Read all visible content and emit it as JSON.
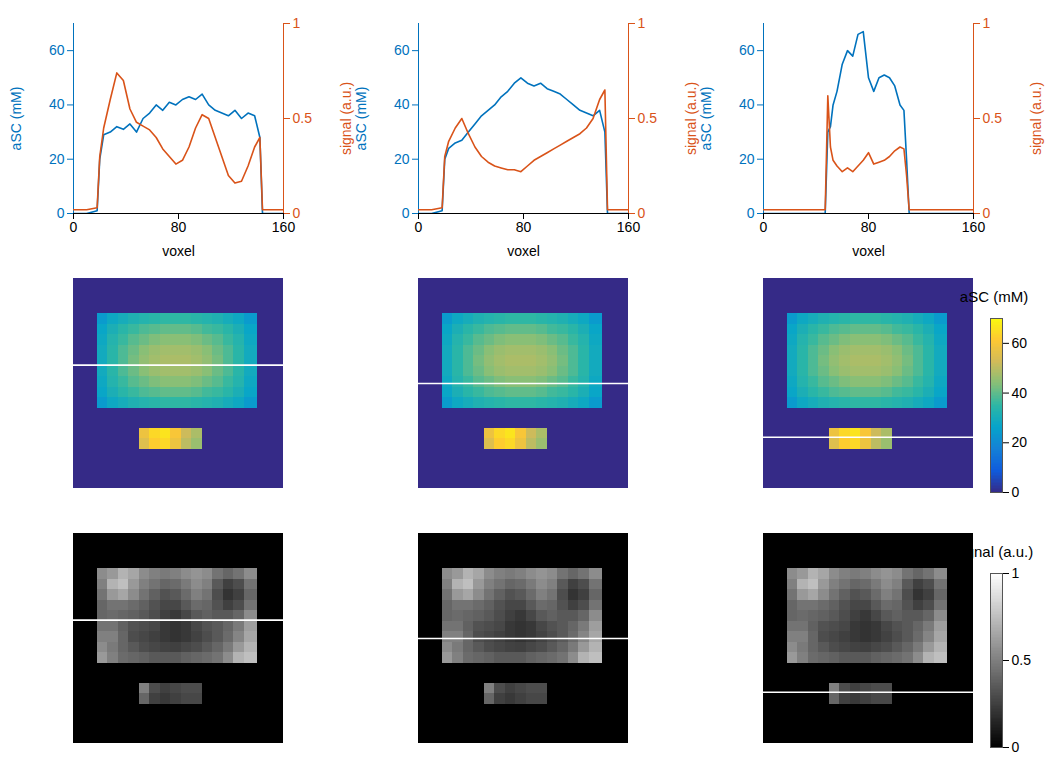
{
  "chart_data": [
    {
      "type": "line",
      "xlabel": "voxel",
      "ylabel": "aSC (mM)",
      "y2label": "signal (a.u.)",
      "xlim": [
        0,
        160
      ],
      "xticks": [
        0,
        80,
        160
      ],
      "ylim": [
        0,
        70
      ],
      "yticks": [
        0,
        20,
        40,
        60
      ],
      "y2lim": [
        0,
        1
      ],
      "y2ticks": [
        0,
        0.5,
        1
      ],
      "x": [
        0,
        10,
        18,
        20,
        23,
        28,
        33,
        38,
        43,
        48,
        53,
        58,
        63,
        68,
        73,
        78,
        83,
        88,
        93,
        98,
        103,
        108,
        113,
        118,
        123,
        128,
        133,
        138,
        142,
        144,
        150,
        160
      ],
      "series": [
        {
          "color": "#0072bd",
          "axis": "y",
          "values": [
            0,
            0,
            1,
            20,
            29,
            30,
            32,
            31,
            33,
            30,
            35,
            37,
            40,
            38,
            41,
            40,
            42,
            43,
            42,
            44,
            40,
            38,
            37,
            36,
            38,
            35,
            37,
            36,
            28,
            0,
            0,
            0
          ]
        },
        {
          "color": "#d95319",
          "axis": "y2",
          "values": [
            0.02,
            0.02,
            0.03,
            0.3,
            0.45,
            0.6,
            0.74,
            0.7,
            0.55,
            0.48,
            0.46,
            0.44,
            0.4,
            0.34,
            0.3,
            0.26,
            0.28,
            0.35,
            0.45,
            0.52,
            0.5,
            0.4,
            0.3,
            0.2,
            0.16,
            0.17,
            0.25,
            0.35,
            0.4,
            0.02,
            0.02,
            0.02
          ]
        }
      ]
    },
    {
      "type": "line",
      "xlabel": "voxel",
      "ylabel": "aSC (mM)",
      "y2label": "signal (a.u.)",
      "xlim": [
        0,
        160
      ],
      "xticks": [
        0,
        80,
        160
      ],
      "ylim": [
        0,
        70
      ],
      "yticks": [
        0,
        20,
        40,
        60
      ],
      "y2lim": [
        0,
        1
      ],
      "y2ticks": [
        0,
        0.5,
        1
      ],
      "x": [
        0,
        10,
        18,
        20,
        23,
        28,
        33,
        38,
        43,
        48,
        53,
        58,
        63,
        68,
        73,
        78,
        83,
        88,
        93,
        98,
        103,
        108,
        113,
        118,
        123,
        128,
        133,
        138,
        142,
        144,
        150,
        160
      ],
      "series": [
        {
          "color": "#0072bd",
          "axis": "y",
          "values": [
            0,
            0,
            1,
            20,
            24,
            26,
            27,
            30,
            33,
            36,
            38,
            40,
            43,
            45,
            48,
            50,
            48,
            47,
            48,
            46,
            45,
            44,
            42,
            40,
            38,
            37,
            36,
            38,
            30,
            0,
            0,
            0
          ]
        },
        {
          "color": "#d95319",
          "axis": "y2",
          "values": [
            0.02,
            0.02,
            0.03,
            0.3,
            0.38,
            0.45,
            0.5,
            0.42,
            0.35,
            0.3,
            0.27,
            0.25,
            0.24,
            0.23,
            0.23,
            0.22,
            0.25,
            0.28,
            0.3,
            0.32,
            0.34,
            0.36,
            0.38,
            0.4,
            0.42,
            0.45,
            0.5,
            0.6,
            0.65,
            0.02,
            0.02,
            0.02
          ]
        }
      ]
    },
    {
      "type": "line",
      "xlabel": "voxel",
      "ylabel": "aSC (mM)",
      "y2label": "signal (a.u.)",
      "xlim": [
        0,
        160
      ],
      "xticks": [
        0,
        80,
        160
      ],
      "ylim": [
        0,
        70
      ],
      "yticks": [
        0,
        20,
        40,
        60
      ],
      "y2lim": [
        0,
        1
      ],
      "y2ticks": [
        0,
        0.5,
        1
      ],
      "x": [
        0,
        10,
        20,
        30,
        40,
        47,
        49,
        51,
        53,
        56,
        60,
        64,
        68,
        72,
        76,
        80,
        84,
        88,
        92,
        96,
        100,
        104,
        107,
        109,
        111,
        120,
        130,
        140,
        150,
        160
      ],
      "series": [
        {
          "color": "#0072bd",
          "axis": "y",
          "values": [
            0,
            0,
            0,
            0,
            0,
            0,
            30,
            32,
            40,
            45,
            55,
            60,
            58,
            66,
            67,
            50,
            45,
            50,
            51,
            50,
            47,
            40,
            38,
            20,
            0,
            0,
            0,
            0,
            0,
            0
          ]
        },
        {
          "color": "#d95319",
          "axis": "y2",
          "values": [
            0.02,
            0.02,
            0.02,
            0.02,
            0.02,
            0.02,
            0.62,
            0.35,
            0.28,
            0.25,
            0.22,
            0.24,
            0.22,
            0.25,
            0.28,
            0.32,
            0.26,
            0.27,
            0.28,
            0.3,
            0.33,
            0.35,
            0.34,
            0.2,
            0.02,
            0.02,
            0.02,
            0.02,
            0.02,
            0.02
          ]
        }
      ]
    },
    {
      "type": "heatmap",
      "color": "parula",
      "profile_y": [
        66,
        80,
        121
      ],
      "colorbar": {
        "label": "aSC (mM)",
        "range": [
          0,
          70
        ],
        "ticks": [
          0,
          20,
          40,
          60
        ]
      },
      "x_edges": [
        0,
        18,
        26,
        34,
        42,
        50,
        58,
        66,
        74,
        82,
        90,
        98,
        106,
        114,
        122,
        130,
        140,
        160
      ],
      "y_edges": [
        0,
        27,
        35,
        43,
        51,
        59,
        67,
        75,
        83,
        91,
        99,
        114,
        122,
        130,
        160
      ],
      "cells": [
        [
          0,
          0,
          0,
          0,
          0,
          0,
          0,
          0,
          0,
          0,
          0,
          0,
          0,
          0,
          0,
          0,
          0
        ],
        [
          0,
          24,
          28,
          30,
          32,
          33,
          34,
          35,
          35,
          35,
          34,
          33,
          32,
          30,
          28,
          24,
          0
        ],
        [
          0,
          27,
          31,
          34,
          36,
          38,
          39,
          40,
          40,
          40,
          39,
          37,
          36,
          34,
          31,
          27,
          0
        ],
        [
          0,
          28,
          33,
          36,
          39,
          41,
          43,
          44,
          44,
          44,
          43,
          41,
          39,
          36,
          33,
          28,
          0
        ],
        [
          0,
          29,
          34,
          38,
          41,
          44,
          46,
          47,
          47,
          47,
          46,
          44,
          41,
          38,
          34,
          29,
          0
        ],
        [
          0,
          29,
          34,
          38,
          42,
          45,
          47,
          48,
          48,
          48,
          47,
          45,
          42,
          38,
          34,
          29,
          0
        ],
        [
          0,
          29,
          34,
          38,
          41,
          44,
          46,
          47,
          47,
          47,
          46,
          44,
          41,
          38,
          34,
          29,
          0
        ],
        [
          0,
          28,
          33,
          36,
          39,
          41,
          43,
          44,
          44,
          44,
          43,
          41,
          39,
          36,
          33,
          28,
          0
        ],
        [
          0,
          27,
          31,
          34,
          36,
          38,
          39,
          40,
          40,
          40,
          39,
          37,
          36,
          34,
          31,
          27,
          0
        ],
        [
          0,
          24,
          28,
          30,
          32,
          33,
          34,
          35,
          35,
          35,
          34,
          33,
          32,
          30,
          28,
          24,
          0
        ],
        [
          0,
          0,
          0,
          0,
          0,
          0,
          0,
          0,
          0,
          0,
          0,
          0,
          0,
          0,
          0,
          0,
          0
        ],
        [
          0,
          0,
          0,
          0,
          0,
          58,
          64,
          66,
          60,
          52,
          48,
          0,
          0,
          0,
          0,
          0,
          0
        ],
        [
          0,
          0,
          0,
          0,
          0,
          55,
          62,
          64,
          58,
          50,
          46,
          0,
          0,
          0,
          0,
          0,
          0
        ],
        [
          0,
          0,
          0,
          0,
          0,
          0,
          0,
          0,
          0,
          0,
          0,
          0,
          0,
          0,
          0,
          0,
          0
        ]
      ]
    },
    {
      "type": "heatmap",
      "color": "gray",
      "profile_y": [
        66,
        80,
        121
      ],
      "colorbar": {
        "label": "signal (a.u.)",
        "range": [
          0,
          1
        ],
        "ticks": [
          0,
          0.5,
          1
        ]
      },
      "x_edges": [
        0,
        18,
        26,
        34,
        42,
        50,
        58,
        66,
        74,
        82,
        90,
        98,
        106,
        114,
        122,
        130,
        140,
        160
      ],
      "y_edges": [
        0,
        27,
        35,
        43,
        51,
        59,
        67,
        75,
        83,
        91,
        99,
        114,
        122,
        130,
        160
      ],
      "cells": [
        [
          0,
          0,
          0,
          0,
          0,
          0,
          0,
          0,
          0,
          0,
          0,
          0,
          0,
          0,
          0,
          0,
          0
        ],
        [
          0,
          0.55,
          0.6,
          0.7,
          0.65,
          0.55,
          0.5,
          0.48,
          0.5,
          0.55,
          0.58,
          0.55,
          0.45,
          0.4,
          0.45,
          0.55,
          0
        ],
        [
          0,
          0.5,
          0.7,
          0.75,
          0.6,
          0.5,
          0.45,
          0.4,
          0.42,
          0.48,
          0.55,
          0.5,
          0.35,
          0.25,
          0.3,
          0.45,
          0
        ],
        [
          0,
          0.45,
          0.6,
          0.65,
          0.55,
          0.45,
          0.38,
          0.32,
          0.35,
          0.42,
          0.5,
          0.45,
          0.3,
          0.2,
          0.25,
          0.4,
          0
        ],
        [
          0,
          0.4,
          0.45,
          0.45,
          0.42,
          0.38,
          0.32,
          0.28,
          0.28,
          0.35,
          0.42,
          0.4,
          0.32,
          0.25,
          0.3,
          0.45,
          0
        ],
        [
          0,
          0.4,
          0.42,
          0.4,
          0.38,
          0.35,
          0.3,
          0.25,
          0.22,
          0.28,
          0.35,
          0.38,
          0.35,
          0.35,
          0.4,
          0.55,
          0
        ],
        [
          0,
          0.45,
          0.45,
          0.38,
          0.32,
          0.3,
          0.28,
          0.22,
          0.2,
          0.22,
          0.28,
          0.32,
          0.35,
          0.4,
          0.48,
          0.62,
          0
        ],
        [
          0,
          0.5,
          0.5,
          0.4,
          0.3,
          0.28,
          0.25,
          0.22,
          0.2,
          0.22,
          0.26,
          0.3,
          0.35,
          0.42,
          0.52,
          0.65,
          0
        ],
        [
          0,
          0.55,
          0.48,
          0.4,
          0.35,
          0.3,
          0.28,
          0.26,
          0.25,
          0.28,
          0.3,
          0.35,
          0.4,
          0.48,
          0.6,
          0.7,
          0
        ],
        [
          0,
          0.6,
          0.5,
          0.42,
          0.4,
          0.38,
          0.35,
          0.35,
          0.35,
          0.38,
          0.4,
          0.42,
          0.45,
          0.55,
          0.7,
          0.75,
          0
        ],
        [
          0,
          0,
          0,
          0,
          0,
          0,
          0,
          0,
          0,
          0,
          0,
          0,
          0,
          0,
          0,
          0,
          0
        ],
        [
          0,
          0,
          0,
          0,
          0,
          0.5,
          0.3,
          0.25,
          0.28,
          0.3,
          0.3,
          0,
          0,
          0,
          0,
          0,
          0
        ],
        [
          0,
          0,
          0,
          0,
          0,
          0.4,
          0.25,
          0.22,
          0.25,
          0.28,
          0.28,
          0,
          0,
          0,
          0,
          0,
          0
        ],
        [
          0,
          0,
          0,
          0,
          0,
          0,
          0,
          0,
          0,
          0,
          0,
          0,
          0,
          0,
          0,
          0,
          0
        ]
      ]
    }
  ]
}
